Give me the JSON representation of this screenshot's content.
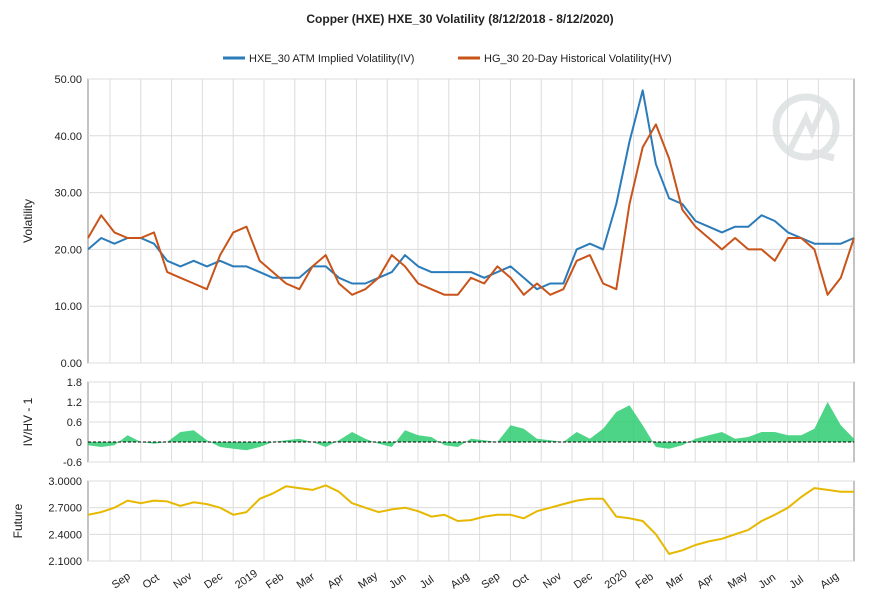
{
  "chart_data": {
    "type": "line",
    "title": "Copper (HXE) HXE_30 Volatility (8/12/2018 - 8/12/2020)",
    "x_tick_labels": [
      "Sep",
      "Oct",
      "Nov",
      "Dec",
      "2019",
      "Feb",
      "Mar",
      "Apr",
      "May",
      "Jun",
      "Jul",
      "Aug",
      "Sep",
      "Oct",
      "Nov",
      "Dec",
      "2020",
      "Feb",
      "Mar",
      "Apr",
      "May",
      "Jun",
      "Jul",
      "Aug"
    ],
    "panels": [
      {
        "ylabel": "Volatility",
        "ylim": [
          0,
          50
        ],
        "y_ticks": [
          "0.00",
          "10.00",
          "20.00",
          "30.00",
          "40.00",
          "50.00"
        ],
        "series": [
          {
            "name": "HXE_30 ATM Implied Volatility(IV)",
            "color": "#2b7bb9",
            "values": [
              20,
              22,
              21,
              22,
              22,
              21,
              18,
              17,
              18,
              17,
              18,
              17,
              17,
              16,
              15,
              15,
              15,
              17,
              17,
              15,
              14,
              14,
              15,
              16,
              19,
              17,
              16,
              16,
              16,
              16,
              15,
              16,
              17,
              15,
              13,
              14,
              14,
              20,
              21,
              20,
              28,
              39,
              48,
              35,
              29,
              28,
              25,
              24,
              23,
              24,
              24,
              26,
              25,
              23,
              22,
              21,
              21,
              21,
              22
            ]
          },
          {
            "name": "HG_30 20-Day Historical Volatility(HV)",
            "color": "#c8541a",
            "values": [
              22,
              26,
              23,
              22,
              22,
              23,
              16,
              15,
              14,
              13,
              19,
              23,
              24,
              18,
              16,
              14,
              13,
              17,
              19,
              14,
              12,
              13,
              15,
              19,
              17,
              14,
              13,
              12,
              12,
              15,
              14,
              17,
              15,
              12,
              14,
              12,
              13,
              18,
              19,
              14,
              13,
              28,
              38,
              42,
              36,
              27,
              24,
              22,
              20,
              22,
              20,
              20,
              18,
              22,
              22,
              20,
              12,
              15,
              22
            ]
          }
        ]
      },
      {
        "ylabel": "IV/HV - 1",
        "ylim": [
          -0.6,
          1.8
        ],
        "y_ticks": [
          "-0.6",
          "0",
          "0.6",
          "1.2",
          "1.8"
        ],
        "series": [
          {
            "name": "IV/HV - 1",
            "color": "#2ecc71",
            "values": [
              -0.1,
              -0.15,
              -0.1,
              0.2,
              0,
              -0.05,
              0,
              0.3,
              0.35,
              0.05,
              -0.15,
              -0.2,
              -0.25,
              -0.15,
              0,
              0.05,
              0.1,
              0,
              -0.15,
              0.05,
              0.3,
              0.1,
              -0.05,
              -0.15,
              0.35,
              0.2,
              0.15,
              -0.1,
              -0.15,
              0.1,
              0.05,
              0,
              0.5,
              0.4,
              0.1,
              0.05,
              0,
              0.3,
              0.1,
              0.4,
              0.9,
              1.1,
              0.5,
              -0.15,
              -0.2,
              -0.1,
              0.1,
              0.2,
              0.3,
              0.1,
              0.15,
              0.3,
              0.3,
              0.2,
              0.2,
              0.4,
              1.2,
              0.5,
              0.1
            ]
          }
        ]
      },
      {
        "ylabel": "Future",
        "ylim": [
          2.1,
          3.0
        ],
        "y_ticks": [
          "2.1000",
          "2.4000",
          "2.7000",
          "3.0000"
        ],
        "series": [
          {
            "name": "Future",
            "color": "#e6b800",
            "values": [
              2.62,
              2.65,
              2.7,
              2.78,
              2.75,
              2.78,
              2.77,
              2.72,
              2.76,
              2.74,
              2.7,
              2.62,
              2.65,
              2.8,
              2.86,
              2.94,
              2.92,
              2.9,
              2.95,
              2.88,
              2.75,
              2.7,
              2.65,
              2.68,
              2.7,
              2.66,
              2.6,
              2.62,
              2.55,
              2.56,
              2.6,
              2.62,
              2.62,
              2.58,
              2.66,
              2.7,
              2.74,
              2.78,
              2.8,
              2.8,
              2.6,
              2.58,
              2.55,
              2.4,
              2.18,
              2.22,
              2.28,
              2.32,
              2.35,
              2.4,
              2.45,
              2.55,
              2.62,
              2.7,
              2.82,
              2.92,
              2.9,
              2.88,
              2.88
            ]
          }
        ]
      }
    ],
    "legend_position": "top-center",
    "grid": true
  }
}
